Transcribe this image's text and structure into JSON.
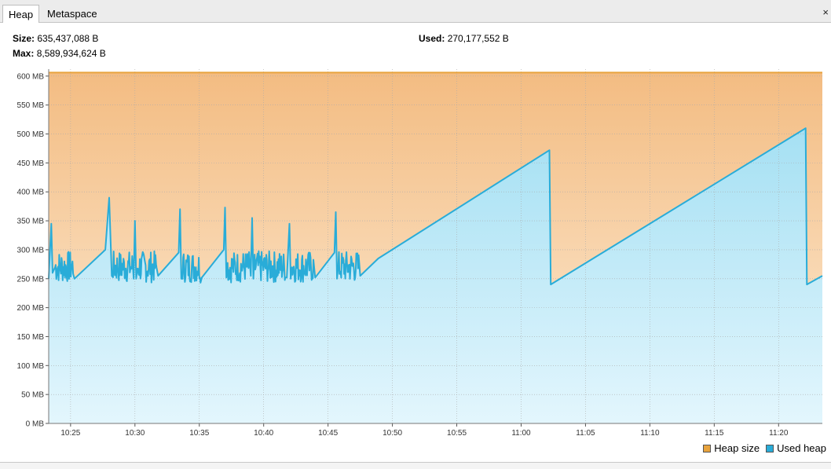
{
  "tabs": [
    {
      "label": "Heap",
      "active": true
    },
    {
      "label": "Metaspace",
      "active": false
    }
  ],
  "close_label": "×",
  "stats": {
    "size_label": "Size:",
    "size_value": "635,437,088 B",
    "max_label": "Max:",
    "max_value": "8,589,934,624 B",
    "used_label": "Used:",
    "used_value": "270,177,552 B"
  },
  "legend": {
    "heap_size": "Heap size",
    "used_heap": "Used heap"
  },
  "colors": {
    "heap_size": "#e8a33d",
    "used_heap": "#29acd8"
  },
  "chart_data": {
    "type": "area",
    "x_ticks": [
      "10:25",
      "10:30",
      "10:35",
      "10:40",
      "10:45",
      "10:50",
      "10:55",
      "11:00",
      "11:05",
      "11:10",
      "11:15",
      "11:20"
    ],
    "x_range_minutes": [
      623.3,
      683.4
    ],
    "y_ticks": [
      "0 MB",
      "50 MB",
      "100 MB",
      "150 MB",
      "200 MB",
      "250 MB",
      "300 MB",
      "350 MB",
      "400 MB",
      "450 MB",
      "500 MB",
      "550 MB",
      "600 MB"
    ],
    "ylim": [
      0,
      612
    ],
    "grid": true,
    "legend_position": "bottom-right",
    "series": [
      {
        "name": "Heap size",
        "constant": 606
      },
      {
        "name": "Used heap",
        "points": [
          [
            623.3,
            250
          ],
          [
            623.5,
            345
          ],
          [
            623.6,
            260
          ],
          [
            625.3,
            250
          ],
          [
            627.7,
            300
          ],
          [
            628.0,
            390
          ],
          [
            628.2,
            255
          ],
          [
            629.9,
            250
          ],
          [
            630.0,
            350
          ],
          [
            630.1,
            250
          ],
          [
            631.8,
            255
          ],
          [
            633.4,
            295
          ],
          [
            633.5,
            370
          ],
          [
            633.6,
            250
          ],
          [
            635.2,
            252
          ],
          [
            636.9,
            300
          ],
          [
            637.0,
            373
          ],
          [
            637.1,
            252
          ],
          [
            639.0,
            255
          ],
          [
            639.1,
            355
          ],
          [
            639.2,
            250
          ],
          [
            641.8,
            252
          ],
          [
            642.0,
            345
          ],
          [
            642.1,
            250
          ],
          [
            644.0,
            252
          ],
          [
            645.5,
            295
          ],
          [
            645.6,
            365
          ],
          [
            645.7,
            250
          ],
          [
            647.5,
            255
          ],
          [
            648.9,
            285
          ],
          [
            662.2,
            472
          ],
          [
            662.3,
            240
          ],
          [
            682.1,
            510
          ],
          [
            682.2,
            240
          ],
          [
            683.4,
            255
          ]
        ]
      }
    ]
  }
}
